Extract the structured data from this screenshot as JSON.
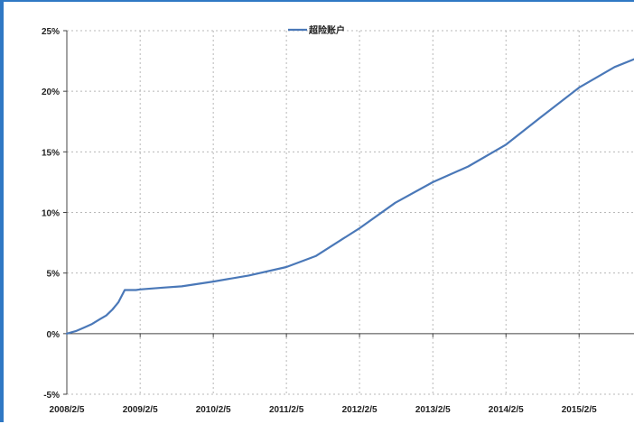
{
  "chart_data": {
    "type": "line",
    "title": "",
    "xlabel": "",
    "ylabel": "",
    "legend_position": "top-center",
    "grid": true,
    "colors": {
      "series": "#4a78b8",
      "frame": "#2f78c4"
    },
    "x_ticks": [
      "2008/2/5",
      "2009/2/5",
      "2010/2/5",
      "2011/2/5",
      "2012/2/5",
      "2013/2/5",
      "2014/2/5",
      "2015/2/5"
    ],
    "y_ticks": [
      "-5%",
      "0%",
      "5%",
      "10%",
      "15%",
      "20%",
      "25%"
    ],
    "ylim": [
      -5,
      25
    ],
    "xlim": [
      "2008/2/5",
      "2015/11/15"
    ],
    "series": [
      {
        "name": "超险账户",
        "x": [
          "2008/2/5",
          "2008/3/20",
          "2008/5/1",
          "2008/6/10",
          "2008/7/20",
          "2008/8/20",
          "2008/9/20",
          "2008/10/20",
          "2008/11/20",
          "2008/12/20",
          "2009/1/15",
          "2009/2/5",
          "2009/6/1",
          "2009/9/1",
          "2010/2/5",
          "2010/8/1",
          "2011/2/5",
          "2011/7/1",
          "2012/2/5",
          "2012/8/1",
          "2013/2/5",
          "2013/8/1",
          "2014/2/5",
          "2014/8/1",
          "2015/2/5",
          "2015/8/1",
          "2015/11/15"
        ],
        "values": [
          0,
          0.2,
          0.5,
          0.8,
          1.2,
          1.5,
          2.0,
          2.6,
          3.6,
          3.6,
          3.6,
          3.65,
          3.8,
          3.9,
          4.3,
          4.8,
          5.5,
          6.4,
          8.7,
          10.8,
          12.5,
          13.8,
          15.6,
          17.9,
          20.3,
          22.0,
          22.7
        ]
      }
    ]
  }
}
